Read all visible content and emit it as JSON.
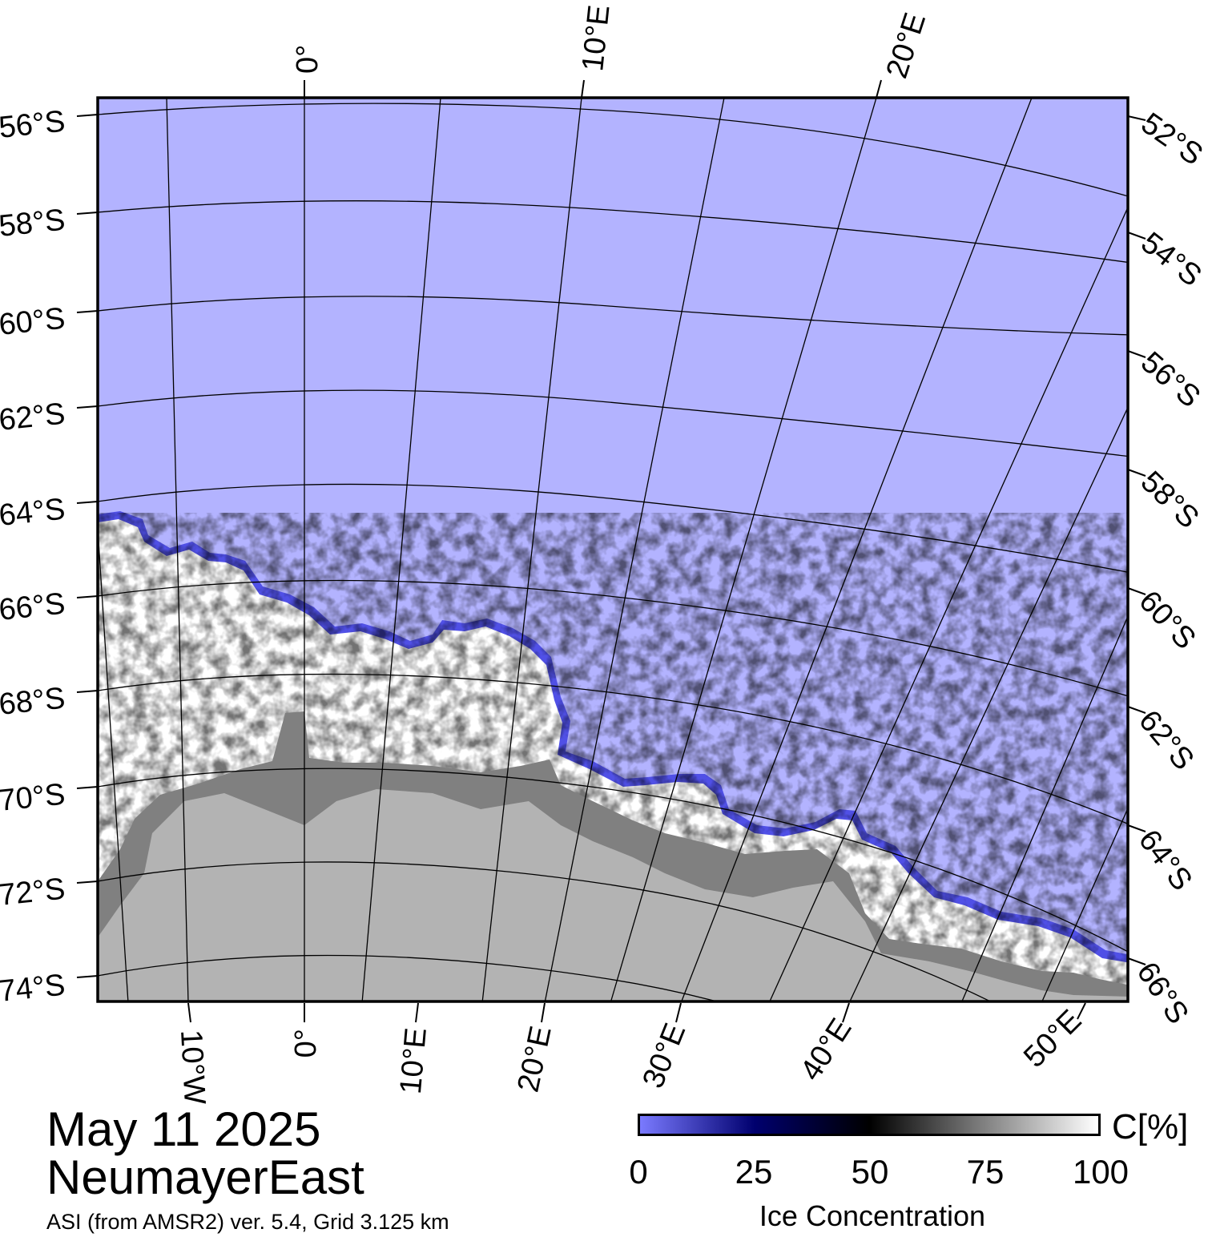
{
  "map": {
    "title_date": "May 11 2025",
    "region_name": "NeumayerEast",
    "product_info": "ASI (from AMSR2) ver. 5.4,  Grid 3.125 km",
    "colors": {
      "open_water": "#b3b3ff",
      "land": "#b3b3b3",
      "ice_shelf": "#808080",
      "sea_ice": "#ffffff",
      "graticule": "#000000"
    },
    "top_longitude_labels": [
      "0°",
      "10°E",
      "20°E"
    ],
    "bottom_longitude_labels": [
      "10°W",
      "0°",
      "10°E",
      "20°E",
      "30°E",
      "40°E",
      "50°E"
    ],
    "left_latitude_labels": [
      "56°S",
      "58°S",
      "60°S",
      "62°S",
      "64°S",
      "66°S",
      "68°S",
      "70°S",
      "72°S",
      "74°S"
    ],
    "right_latitude_labels": [
      "52°S",
      "54°S",
      "56°S",
      "58°S",
      "60°S",
      "62°S",
      "64°S",
      "66°S"
    ]
  },
  "colorbar": {
    "unit": "C[%]",
    "label": "Ice Concentration",
    "ticks": [
      "0",
      "25",
      "50",
      "75",
      "100"
    ],
    "colors": [
      "#7a7aff",
      "#00006e",
      "#000000",
      "#808080",
      "#ffffff"
    ]
  }
}
